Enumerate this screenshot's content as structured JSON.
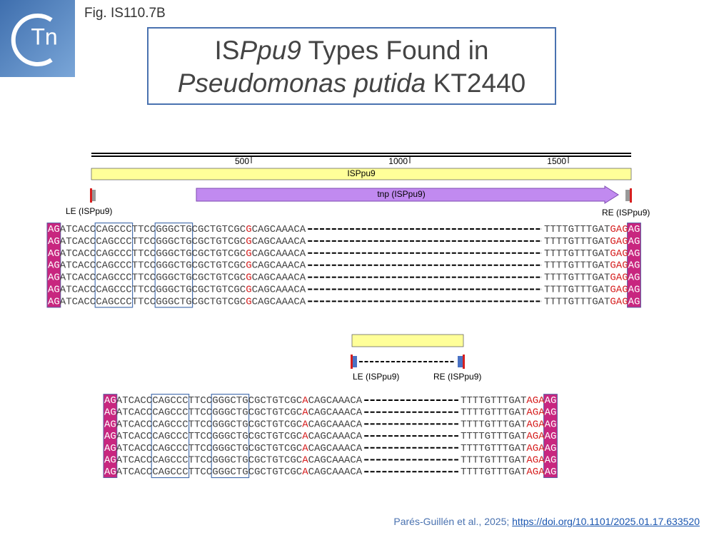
{
  "fig_label": "Fig. IS110.7B",
  "logo": "Tn",
  "title": {
    "line1": [
      "IS",
      "Ppu9",
      "Types Found in"
    ],
    "line2": [
      "Pseudomonas putida",
      "KT2440"
    ]
  },
  "map_1": {
    "scale_ticks": [
      "500",
      "1000",
      "1500"
    ],
    "element": "ISPpu9",
    "gene": "tnp (ISPpu9)",
    "left_end": "LE (ISPpu9)",
    "right_end": "RE (ISPpu9)"
  },
  "alignment_1": {
    "rows": [
      {
        "left": [
          "AG",
          "ATCACCCAGCCCTTCCGGGCTGCGCTGTCGC",
          "G",
          "CAGCAAACA"
        ],
        "right": [
          "TTTTGTTTGAT",
          "GAG",
          "AG"
        ]
      },
      {
        "left": [
          "AG",
          "ATCACCCAGCCCTTCCGGGCTGCGCTGTCGC",
          "G",
          "CAGCAAACA"
        ],
        "right": [
          "TTTTGTTTGAT",
          "GAG",
          "AG"
        ]
      },
      {
        "left": [
          "AG",
          "ATCACCCAGCCCTTCCGGGCTGCGCTGTCGC",
          "G",
          "CAGCAAACA"
        ],
        "right": [
          "TTTTGTTTGAT",
          "GAG",
          "AG"
        ]
      },
      {
        "left": [
          "AG",
          "ATCACCCAGCCCTTCCGGGCTGCGCTGTCGC",
          "G",
          "CAGCAAACA"
        ],
        "right": [
          "TTTTGTTTGAT",
          "GAG",
          "AG"
        ]
      },
      {
        "left": [
          "AG",
          "ATCACCCAGCCCTTCCGGGCTGCGCTGTCGC",
          "G",
          "CAGCAAACA"
        ],
        "right": [
          "TTTTGTTTGAT",
          "GAG",
          "AG"
        ]
      },
      {
        "left": [
          "AG",
          "ATCACCCAGCCCTTCCGGGCTGCGCTGTCGC",
          "G",
          "CAGCAAACA"
        ],
        "right": [
          "TTTTGTTTGAT",
          "GAG",
          "AG"
        ]
      },
      {
        "left": [
          "AG",
          "ATCACCCAGCCCTTCCGGGCTGCGCTGTCGC",
          "G",
          "CAGCAAACA"
        ],
        "right": [
          "TTTTGTTTGAT",
          "GAG",
          "AG"
        ]
      }
    ]
  },
  "map_2": {
    "left_end": "LE (ISPpu9)",
    "right_end": "RE (ISPpu9)"
  },
  "alignment_2": {
    "rows": [
      {
        "left": [
          "AG",
          "ATCACCCAGCCCTTCCGGGCTGCGCTGTCGC",
          "A",
          "CAGCAAACA"
        ],
        "right": [
          "TTTTGTTTGAT",
          "AGA",
          "AG"
        ]
      },
      {
        "left": [
          "AG",
          "ATCACCCAGCCCTTCCGGGCTGCGCTGTCGC",
          "A",
          "CAGCAAACA"
        ],
        "right": [
          "TTTTGTTTGAT",
          "AGA",
          "AG"
        ]
      },
      {
        "left": [
          "AG",
          "ATCACCCAGCCCTTCCGGGCTGCGCTGTCGC",
          "A",
          "CAGCAAACA"
        ],
        "right": [
          "TTTTGTTTGAT",
          "AGA",
          "AG"
        ]
      },
      {
        "left": [
          "AG",
          "ATCACCCAGCCCTTCCGGGCTGCGCTGTCGC",
          "A",
          "CAGCAAACA"
        ],
        "right": [
          "TTTTGTTTGAT",
          "AGA",
          "AG"
        ]
      },
      {
        "left": [
          "AG",
          "ATCACCCAGCCCTTCCGGGCTGCGCTGTCGC",
          "A",
          "CAGCAAACA"
        ],
        "right": [
          "TTTTGTTTGAT",
          "AGA",
          "AG"
        ]
      },
      {
        "left": [
          "AG",
          "ATCACCCAGCCCTTCCGGGCTGCGCTGTCGC",
          "A",
          "CAGCAAACA"
        ],
        "right": [
          "TTTTGTTTGAT",
          "AGA",
          "AG"
        ]
      },
      {
        "left": [
          "AG",
          "ATCACCCAGCCCTTCCGGGCTGCGCTGTCGC",
          "A",
          "CAGCAAACA"
        ],
        "right": [
          "TTTTGTTTGAT",
          "AGA",
          "AG"
        ]
      }
    ]
  },
  "citation": {
    "text": "Parés-Guillén et al., 2025;",
    "link": "https://doi.org/10.1101/2025.01.17.633520"
  }
}
